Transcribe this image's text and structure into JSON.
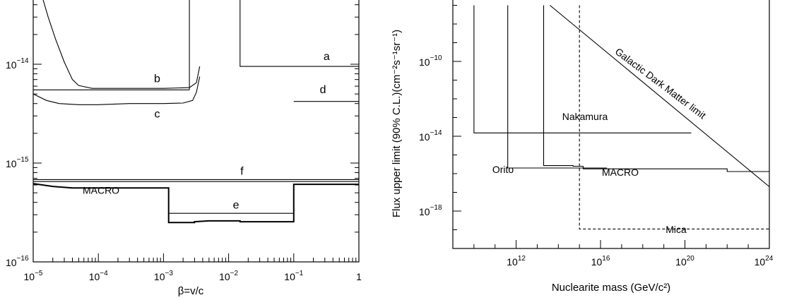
{
  "chart_data": [
    {
      "type": "line",
      "x_scale": "log",
      "y_scale": "log",
      "xlabel": "β=v/c",
      "ylabel": "",
      "xlim": [
        1e-05,
        1
      ],
      "ylim_visible": [
        1e-16,
        6e-14
      ],
      "x_ticks": [
        {
          "base": "10",
          "exp": "−5",
          "value": 1e-05
        },
        {
          "base": "10",
          "exp": "−4",
          "value": 0.0001
        },
        {
          "base": "10",
          "exp": "−3",
          "value": 0.001
        },
        {
          "base": "10",
          "exp": "−2",
          "value": 0.01
        },
        {
          "base": "10",
          "exp": "−1",
          "value": 0.1
        },
        {
          "base": "1",
          "exp": "",
          "value": 1
        }
      ],
      "y_ticks": [
        {
          "base": "10",
          "exp": "−16",
          "value": 1e-16
        },
        {
          "base": "10",
          "exp": "−15",
          "value": 1e-15
        },
        {
          "base": "10",
          "exp": "−14",
          "value": 1e-14
        }
      ],
      "series": [
        {
          "name": "a",
          "points": [
            [
              0.015,
              6e-14
            ],
            [
              0.015,
              9.5e-15
            ],
            [
              1,
              9.5e-15
            ]
          ]
        },
        {
          "name": "b",
          "points": [
            [
              1e-05,
              5.5e-15
            ],
            [
              0.0025,
              5.5e-15
            ]
          ]
        },
        {
          "name": "b-edge",
          "points": [
            [
              0.0025,
              5.5e-15
            ],
            [
              0.0025,
              6e-14
            ]
          ]
        },
        {
          "name": "c",
          "points": [
            [
              1.4e-05,
              6e-14
            ],
            [
              1.7e-05,
              3e-14
            ],
            [
              2.2e-05,
              1.8e-14
            ],
            [
              3e-05,
              1.05e-14
            ],
            [
              4e-05,
              7e-15
            ],
            [
              5e-05,
              6.1e-15
            ],
            [
              8e-05,
              5.7e-15
            ],
            [
              0.001,
              5.7e-15
            ],
            [
              0.0025,
              5.8e-15
            ],
            [
              0.0032,
              6.5e-15
            ],
            [
              0.0036,
              9.5e-15
            ]
          ]
        },
        {
          "name": "c-lower",
          "points": [
            [
              1e-05,
              5e-15
            ],
            [
              1.6e-05,
              4.3e-15
            ],
            [
              2.5e-05,
              4e-15
            ],
            [
              5e-05,
              3.9e-15
            ],
            [
              0.0001,
              3.9e-15
            ],
            [
              0.0003,
              4e-15
            ],
            [
              0.001,
              4e-15
            ],
            [
              0.002,
              4.05e-15
            ],
            [
              0.0028,
              4.3e-15
            ],
            [
              0.0032,
              5.2e-15
            ],
            [
              0.0036,
              7.5e-15
            ]
          ]
        },
        {
          "name": "d",
          "points": [
            [
              0.1,
              4.2e-15
            ],
            [
              1,
              4.2e-15
            ]
          ]
        },
        {
          "name": "f",
          "points": [
            [
              1e-05,
              6.8e-16
            ],
            [
              1,
              6.8e-16
            ]
          ]
        },
        {
          "name": "f-lower",
          "points": [
            [
              1e-05,
              6.5e-16
            ],
            [
              1,
              6.5e-16
            ]
          ]
        },
        {
          "name": "e",
          "points": [
            [
              0.0012,
              3.1e-16
            ],
            [
              0.1,
              3.1e-16
            ]
          ]
        },
        {
          "name": "MACRO",
          "points": [
            [
              1e-05,
              6.2e-16
            ],
            [
              2e-05,
              5.8e-16
            ],
            [
              4e-05,
              5.6e-16
            ],
            [
              0.0012,
              5.6e-16
            ],
            [
              0.0012,
              2.5e-16
            ],
            [
              0.003,
              2.5e-16
            ],
            [
              0.003,
              2.55e-16
            ],
            [
              0.005,
              2.6e-16
            ],
            [
              0.015,
              2.6e-16
            ],
            [
              0.015,
              2.55e-16
            ],
            [
              0.1,
              2.55e-16
            ],
            [
              0.1,
              6.1e-16
            ],
            [
              1,
              6.1e-16
            ]
          ]
        }
      ],
      "labels": [
        "a",
        "b",
        "c",
        "d",
        "f",
        "e",
        "MACRO"
      ]
    },
    {
      "type": "line",
      "x_scale": "log",
      "y_scale": "log",
      "xlabel": "Nuclearite mass (GeV/c²)",
      "ylabel": "Flux upper limit (90% C.L.)(cm⁻²s⁻¹sr⁻¹)",
      "xlim": [
        1000000000.0,
        1e+24
      ],
      "ylim_visible": [
        1e-20,
        1e-07
      ],
      "x_ticks": [
        {
          "base": "10",
          "exp": "12",
          "value": 1000000000000.0
        },
        {
          "base": "10",
          "exp": "16",
          "value": 1e+16
        },
        {
          "base": "10",
          "exp": "20",
          "value": 1e+20
        },
        {
          "base": "10",
          "exp": "24",
          "value": 1e+24
        }
      ],
      "y_ticks": [
        {
          "base": "10",
          "exp": "−10",
          "value": 1e-10
        },
        {
          "base": "10",
          "exp": "−14",
          "value": 1e-14
        },
        {
          "base": "10",
          "exp": "−18",
          "value": 1e-18
        }
      ],
      "series": [
        {
          "name": "Galactic Dark Matter limit",
          "points": [
            [
              40000000000000.0,
              1e-07
            ],
            [
              1e+24,
              2e-17
            ]
          ]
        },
        {
          "name": "Nakamura",
          "points": [
            [
              10000000000.0,
              1e-07
            ],
            [
              10000000000.0,
              1.5e-14
            ],
            [
              2e+20,
              1.5e-14
            ]
          ]
        },
        {
          "name": "Orito",
          "points": [
            [
              400000000000.0,
              1e-07
            ],
            [
              400000000000.0,
              2e-16
            ],
            [
              2e+16,
              2e-16
            ]
          ]
        },
        {
          "name": "MACRO",
          "points": [
            [
              20000000000000.0,
              1e-07
            ],
            [
              20000000000000.0,
              2.7e-16
            ],
            [
              500000000000000.0,
              2.7e-16
            ],
            [
              500000000000000.0,
              2.5e-16
            ],
            [
              1500000000000000.0,
              2.5e-16
            ],
            [
              1500000000000000.0,
              1.8e-16
            ],
            [
              1e+22,
              1.8e-16
            ],
            [
              1e+22,
              1.3e-16
            ],
            [
              1e+24,
              1.3e-16
            ]
          ]
        },
        {
          "name": "Mica",
          "dashed": true,
          "points": [
            [
              1000000000000000.0,
              1e-07
            ],
            [
              1000000000000000.0,
              1.1e-19
            ],
            [
              1e+24,
              1.1e-19
            ]
          ]
        }
      ],
      "labels": [
        "Galactic Dark Matter limit",
        "Nakamura",
        "Orito",
        "MACRO",
        "Mica"
      ]
    }
  ]
}
